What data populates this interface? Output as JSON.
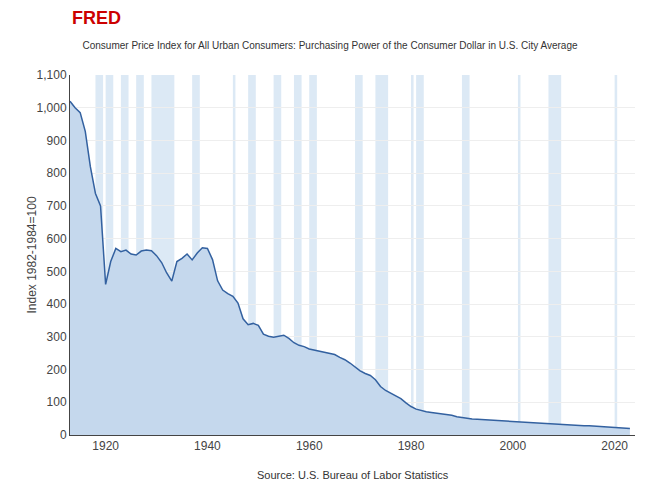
{
  "chart_data": {
    "type": "area",
    "title": "Consumer Price Index for All Urban Consumers: Purchasing Power of the Consumer Dollar in U.S. City Average",
    "ylabel": "Index 1982-1984=100",
    "source": "Source: U.S. Bureau of Labor Statistics",
    "annotations": [
      "FRED"
    ],
    "color": "#3361a0",
    "fill_color": "#c5d8ed",
    "recession_color": "#dce9f5",
    "recession_bands": [
      [
        1918,
        1919.5
      ],
      [
        1920,
        1921.5
      ],
      [
        1923,
        1924.5
      ],
      [
        1926,
        1927.5
      ],
      [
        1929,
        1933.5
      ],
      [
        1937,
        1938.5
      ],
      [
        1945,
        1945.5
      ],
      [
        1948,
        1949.5
      ],
      [
        1953,
        1954.5
      ],
      [
        1957,
        1958.5
      ],
      [
        1960,
        1961.5
      ],
      [
        1969,
        1970.5
      ],
      [
        1973,
        1975.5
      ],
      [
        1980,
        1980.5
      ],
      [
        1981,
        1982.5
      ],
      [
        1990,
        1991.5
      ],
      [
        2001,
        2001.5
      ],
      [
        2007,
        2009.5
      ],
      [
        2020,
        2020.5
      ]
    ],
    "x": [
      1913,
      1914,
      1915,
      1916,
      1917,
      1918,
      1919,
      1920,
      1921,
      1922,
      1923,
      1924,
      1925,
      1926,
      1927,
      1928,
      1929,
      1930,
      1931,
      1932,
      1933,
      1934,
      1935,
      1936,
      1937,
      1938,
      1939,
      1940,
      1941,
      1942,
      1943,
      1944,
      1945,
      1946,
      1947,
      1948,
      1949,
      1950,
      1951,
      1952,
      1953,
      1954,
      1955,
      1956,
      1957,
      1958,
      1959,
      1960,
      1961,
      1962,
      1963,
      1964,
      1965,
      1966,
      1967,
      1968,
      1969,
      1970,
      1971,
      1972,
      1973,
      1974,
      1975,
      1976,
      1977,
      1978,
      1979,
      1980,
      1981,
      1982,
      1983,
      1984,
      1985,
      1986,
      1987,
      1988,
      1989,
      1990,
      1991,
      1992,
      1993,
      1994,
      1995,
      1996,
      1997,
      1998,
      1999,
      2000,
      2001,
      2002,
      2003,
      2004,
      2005,
      2006,
      2007,
      2008,
      2009,
      2010,
      2011,
      2012,
      2013,
      2014,
      2015,
      2016,
      2017,
      2018,
      2019,
      2020,
      2021,
      2022,
      2023
    ],
    "values": [
      1020,
      1000,
      985,
      928,
      820,
      738,
      700,
      460,
      530,
      570,
      560,
      565,
      553,
      550,
      562,
      565,
      563,
      548,
      527,
      495,
      470,
      530,
      540,
      553,
      535,
      556,
      572,
      570,
      536,
      471,
      443,
      432,
      424,
      403,
      355,
      337,
      341,
      335,
      308,
      302,
      299,
      302,
      305,
      295,
      282,
      274,
      270,
      263,
      260,
      256,
      252,
      249,
      246,
      237,
      230,
      220,
      207,
      196,
      188,
      182,
      169,
      148,
      136,
      128,
      120,
      111,
      98,
      87,
      79,
      74,
      71,
      69,
      67,
      66,
      63,
      60,
      56,
      53,
      51,
      49,
      48,
      47,
      45,
      44,
      43,
      43,
      42,
      41,
      40,
      39,
      38,
      37,
      36,
      35,
      34,
      33,
      33,
      32,
      31,
      30,
      29,
      28,
      28,
      27,
      27,
      26,
      25,
      25,
      24,
      21,
      20
    ],
    "xlim": [
      1913,
      2024
    ],
    "ylim": [
      0,
      1100
    ],
    "xticks": [
      1920,
      1940,
      1960,
      1980,
      2000,
      2020
    ],
    "yticks": [
      0,
      100,
      200,
      300,
      400,
      500,
      600,
      700,
      800,
      900,
      {
        "value": 1000,
        "label": "1,000"
      },
      {
        "value": 1100,
        "label": "1,100"
      }
    ],
    "grid": true
  }
}
